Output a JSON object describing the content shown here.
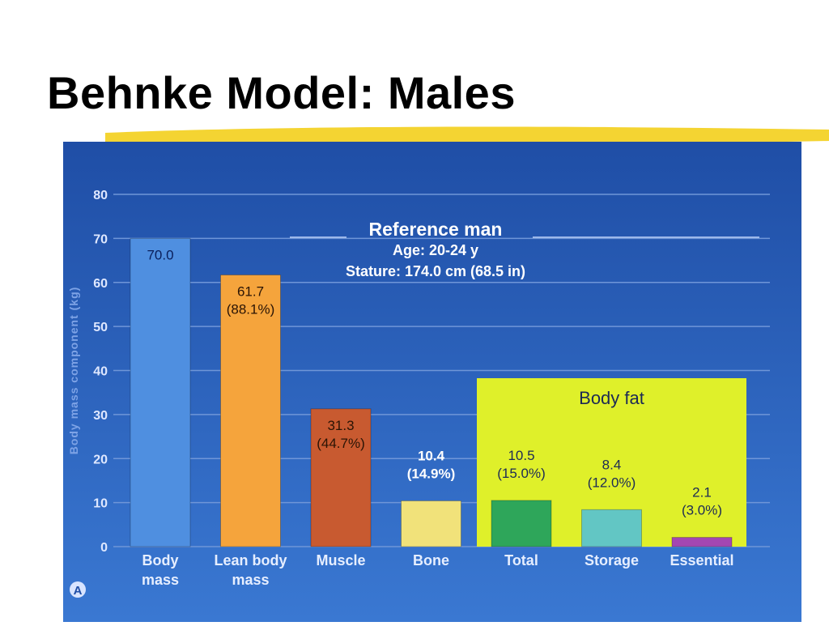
{
  "slide": {
    "title": "Behnke Model: Males"
  },
  "panel_label": "A",
  "chart_data": {
    "type": "bar",
    "ylabel": "Body mass component (kg)",
    "xlabel": "",
    "ylim": [
      0,
      80
    ],
    "yticks": [
      0,
      10,
      20,
      30,
      40,
      50,
      60,
      70,
      80
    ],
    "grid": true,
    "reference": {
      "title": "Reference man",
      "age": "Age: 20-24 y",
      "stature": "Stature: 174.0 cm (68.5 in)"
    },
    "group": {
      "label": "Body fat",
      "color": "#dff02a",
      "members": [
        "Total",
        "Storage",
        "Essential"
      ]
    },
    "categories": [
      "Body\nmass",
      "Lean body\nmass",
      "Muscle",
      "Bone",
      "Total",
      "Storage",
      "Essential"
    ],
    "values": [
      70.0,
      61.7,
      31.3,
      10.4,
      10.5,
      8.4,
      2.1
    ],
    "value_labels": [
      "70.0",
      "61.7",
      "31.3",
      "10.4",
      "10.5",
      "8.4",
      "2.1"
    ],
    "percent_labels": [
      "",
      "(88.1%)",
      "(44.7%)",
      "(14.9%)",
      "(15.0%)",
      "(12.0%)",
      "(3.0%)"
    ],
    "colors": [
      "#4f8fe0",
      "#f5a43c",
      "#c85a30",
      "#f1e27a",
      "#2ea65a",
      "#62c6c4",
      "#a447b2"
    ],
    "label_colors": [
      "#0a1e5a",
      "#2a1405",
      "#2a1405",
      "#ffffff",
      "#1c2a55",
      "#1c2a55",
      "#1c2a55"
    ],
    "background": "#2a5db8",
    "gridline_color": "#6f96d8"
  }
}
